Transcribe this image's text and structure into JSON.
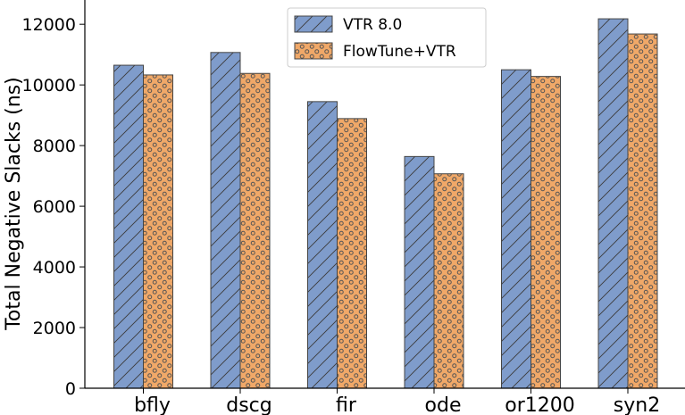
{
  "chart_data": {
    "type": "bar",
    "title": "",
    "xlabel": "",
    "ylabel": "Total Negative Slacks (ns)",
    "ylim": [
      0,
      12800
    ],
    "yticks": [
      0,
      2000,
      4000,
      6000,
      8000,
      10000,
      12000
    ],
    "grid": false,
    "legend_position": "top-center",
    "categories": [
      "bfly",
      "dscg",
      "fir",
      "ode",
      "or1200",
      "syn2"
    ],
    "series": [
      {
        "name": "VTR 8.0",
        "values": [
          10650,
          11070,
          9450,
          7640,
          10500,
          12180
        ],
        "color": "#7f9ccb",
        "hatch": "diagonal"
      },
      {
        "name": "FlowTune+VTR",
        "values": [
          10330,
          10380,
          8890,
          7070,
          10280,
          11680
        ],
        "color": "#f0a868",
        "hatch": "dots"
      }
    ]
  }
}
